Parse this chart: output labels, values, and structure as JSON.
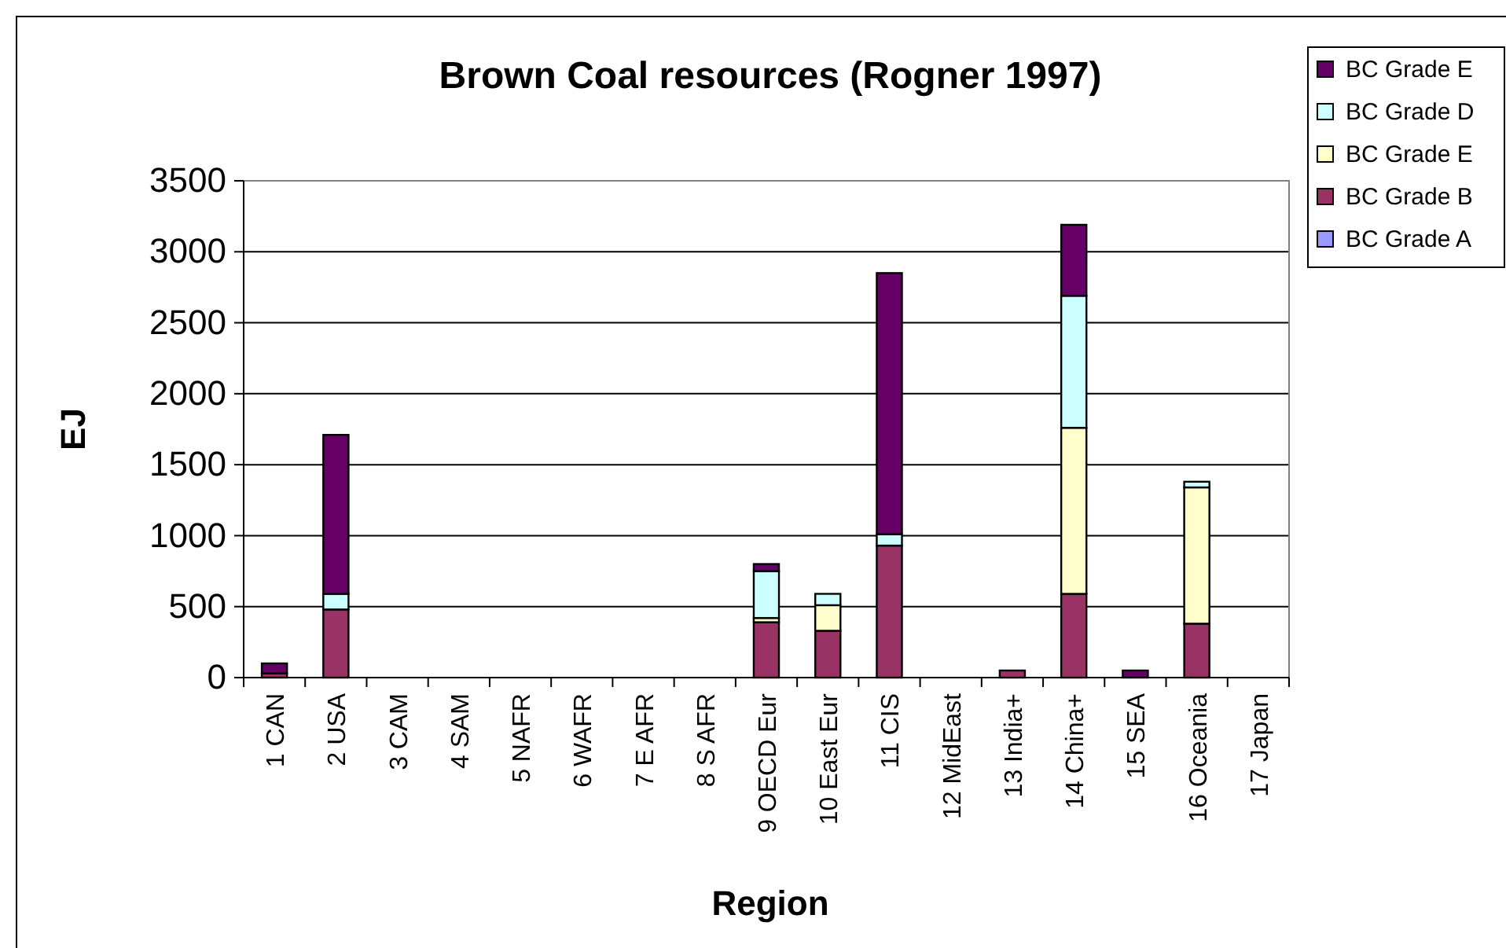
{
  "chart_data": {
    "type": "bar",
    "stacked": true,
    "title": "Brown Coal resources (Rogner 1997)",
    "xlabel": "Region",
    "ylabel": "EJ",
    "categories": [
      "1 CAN",
      "2 USA",
      "3 CAM",
      "4 SAM",
      "5 NAFR",
      "6 WAFR",
      "7 E AFR",
      "8 S AFR",
      "9 OECD Eur",
      "10 East Eur",
      "11 CIS",
      "12 MidEast",
      "13 India+",
      "14 China+",
      "15 SEA",
      "16 Oceania",
      "17 Japan"
    ],
    "series": [
      {
        "name": "BC Grade A",
        "color": "#9999ff",
        "values": [
          0,
          0,
          0,
          0,
          0,
          0,
          0,
          0,
          0,
          0,
          0,
          0,
          0,
          0,
          0,
          0,
          0
        ]
      },
      {
        "name": "BC Grade B",
        "color": "#993366",
        "values": [
          30,
          480,
          0,
          0,
          0,
          0,
          0,
          0,
          390,
          330,
          930,
          0,
          50,
          590,
          0,
          380,
          0
        ]
      },
      {
        "name": "BC Grade E",
        "color": "#ffffcc",
        "values": [
          0,
          0,
          0,
          0,
          0,
          0,
          0,
          0,
          30,
          180,
          0,
          0,
          0,
          1170,
          0,
          960,
          0
        ]
      },
      {
        "name": "BC Grade D",
        "color": "#ccffff",
        "values": [
          0,
          110,
          0,
          0,
          0,
          0,
          0,
          0,
          330,
          80,
          80,
          0,
          0,
          930,
          0,
          40,
          0
        ]
      },
      {
        "name": "BC Grade E",
        "color": "#660066",
        "values": [
          70,
          1120,
          0,
          0,
          0,
          0,
          0,
          0,
          50,
          0,
          1840,
          0,
          0,
          500,
          50,
          0,
          0
        ]
      }
    ],
    "ylim": [
      0,
      3500
    ],
    "yticks": [
      0,
      500,
      1000,
      1500,
      2000,
      2500,
      3000,
      3500
    ],
    "grid": "y",
    "legend": "right"
  }
}
